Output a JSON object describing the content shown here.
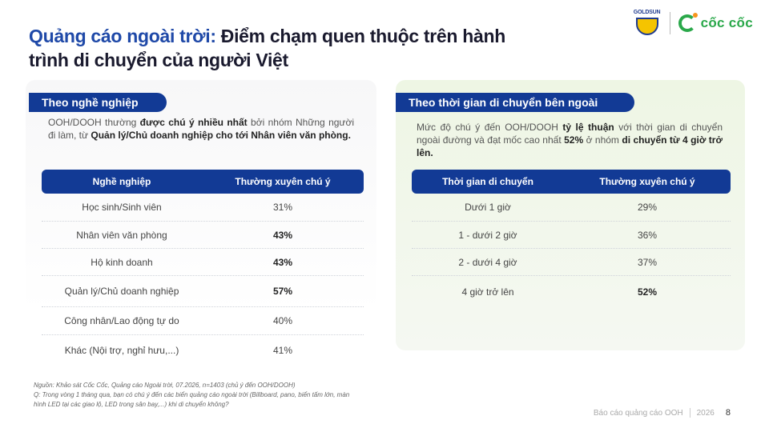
{
  "title": {
    "accent": "Quảng cáo ngoài trời:",
    "rest": " Điểm chạm quen thuộc trên hành trình di chuyển của người Việt"
  },
  "logos": {
    "goldsun": "GOLDSUN",
    "coccoc": "cốc cốc"
  },
  "left": {
    "tag": "Theo nghề nghiệp",
    "desc": {
      "p1": "OOH/DOOH thường ",
      "b1": "được chú ý nhiều nhất",
      "p2": " bởi nhóm Những người đi làm, từ ",
      "b2": "Quản lý/Chủ doanh nghiệp cho tới Nhân viên văn phòng."
    },
    "table": {
      "headers": [
        "Nghề nghiệp",
        "Thường xuyên chú ý"
      ],
      "rows": [
        {
          "label": "Học sinh/Sinh viên",
          "value": "31%"
        },
        {
          "label": "Nhân viên văn phòng",
          "value": "43%"
        },
        {
          "label": "Hộ kinh doanh",
          "value": "43%"
        },
        {
          "label": "Quản lý/Chủ doanh nghiệp",
          "value": "57%"
        },
        {
          "label": "Công nhân/Lao động tự do",
          "value": "40%"
        },
        {
          "label": "Khác (Nội trợ, nghỉ hưu,...)",
          "value": "41%"
        }
      ]
    }
  },
  "right": {
    "tag": "Theo thời gian di chuyển bên ngoài",
    "desc": {
      "p1": "Mức độ chú ý đến OOH/DOOH ",
      "b1": "tỷ lệ thuận",
      "p2": " với thời gian di chuyển ngoài đường và đạt mốc cao nhất ",
      "b2": "52%",
      "p3": " ở nhóm ",
      "b3": "di chuyển từ 4 giờ trở lên."
    },
    "table": {
      "headers": [
        "Thời gian di chuyển",
        "Thường xuyên chú ý"
      ],
      "rows": [
        {
          "label": "Dưới 1 giờ",
          "value": "29%"
        },
        {
          "label": "1 - dưới 2 giờ",
          "value": "36%"
        },
        {
          "label": "2 - dưới 4 giờ",
          "value": "37%"
        },
        {
          "label": "4 giờ trở lên",
          "value": "52%"
        }
      ]
    }
  },
  "footnote": {
    "source": "Nguồn: Khảo sát Cốc Cốc, Quảng cáo Ngoài trời, 07.2026, n=1403 (chủ ý đến OOH/DOOH)",
    "question": "Q: Trong vòng 1 tháng qua, bạn có chú ý đến các biển quảng cáo ngoài trời (Billboard, pano, biển tấm lớn, màn hình LED tại các giao lộ, LED trong sân bay,...) khi di chuyển không?"
  },
  "footer": {
    "report": "Báo cáo quảng cáo OOH",
    "year": "2026",
    "page": "8"
  }
}
